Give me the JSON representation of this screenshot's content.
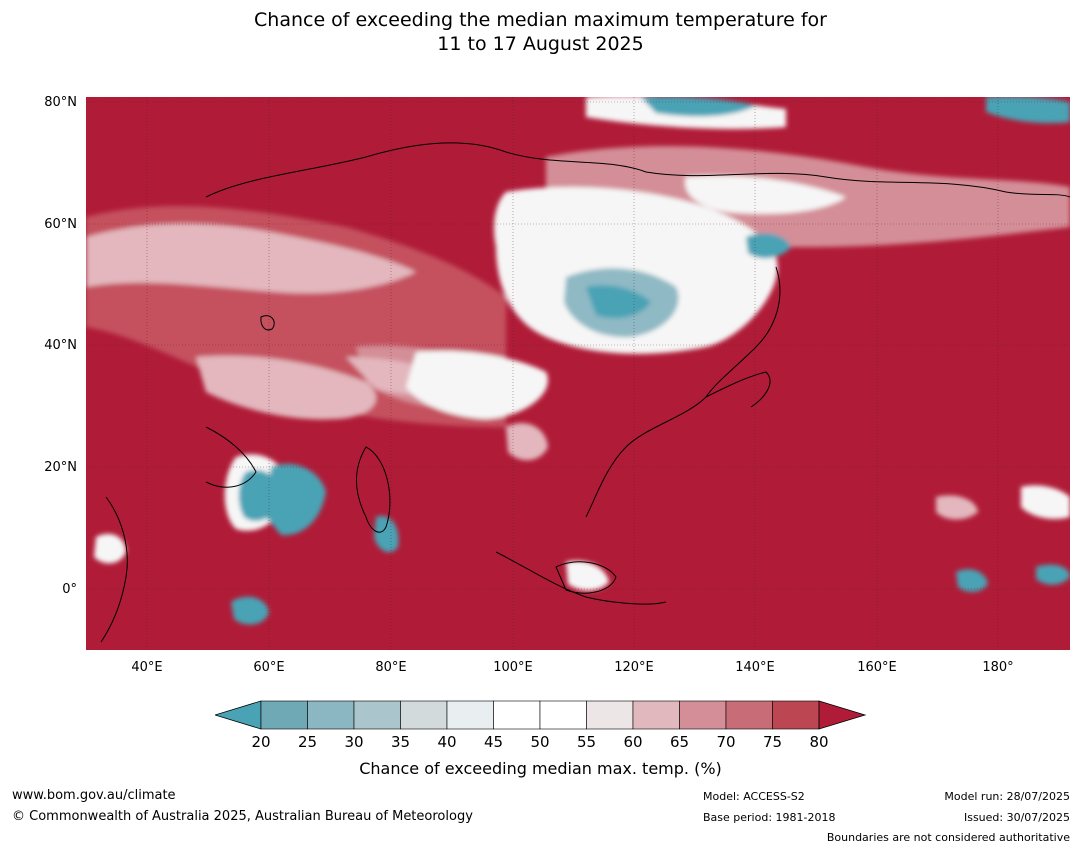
{
  "title": {
    "line1": "Chance of exceeding the median maximum temperature for",
    "line2": "11 to 17 August 2025"
  },
  "map": {
    "lat_labels": [
      "80°N",
      "60°N",
      "40°N",
      "20°N",
      "0°"
    ],
    "lon_labels": [
      "40°E",
      "60°E",
      "80°E",
      "100°E",
      "120°E",
      "140°E",
      "160°E",
      "180°"
    ],
    "colors": {
      "very_high": "#b01c38",
      "high": "#c5515e",
      "mid_high": "#e3b7bd",
      "neutral": "#f6f6f6",
      "low": "#8fb9c4",
      "very_low": "#49a3b5",
      "coast": "#000000",
      "borders": "#7a7a7a"
    }
  },
  "colorbar": {
    "ticks": [
      "20",
      "25",
      "30",
      "35",
      "40",
      "45",
      "50",
      "55",
      "60",
      "65",
      "70",
      "75",
      "80"
    ],
    "colors": [
      "#49a3b5",
      "#6fa9b5",
      "#8ab7c2",
      "#aac5cb",
      "#d2dadc",
      "#e9eef0",
      "#ffffff",
      "#ffffff",
      "#ece6e7",
      "#e1b8bd",
      "#d48e97",
      "#c86c77",
      "#bd4653",
      "#b01c38"
    ],
    "label": "Chance of exceeding median max. temp. (%)"
  },
  "footer": {
    "website": "www.bom.gov.au/climate",
    "copyright": "© Commonwealth of Australia 2025, Australian Bureau of Meteorology",
    "model": "Model: ACCESS-S2",
    "base_period": "Base period: 1981-2018",
    "model_run": "Model run: 28/07/2025",
    "issued": "Issued: 30/07/2025",
    "boundaries": "Boundaries are not considered authoritative"
  }
}
